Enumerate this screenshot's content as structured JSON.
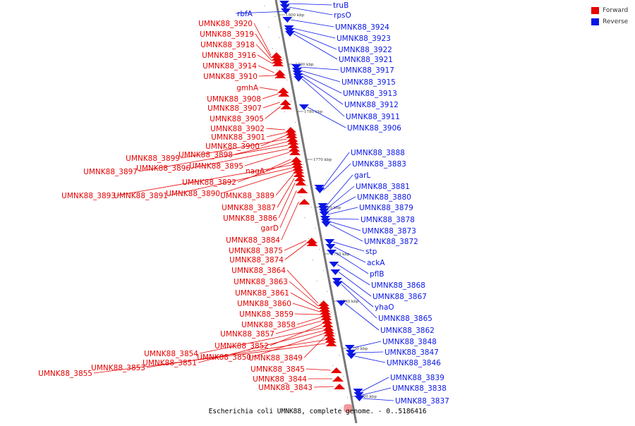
{
  "caption": "Escherichia coli UMNK88, complete genome. - 0..5186416",
  "legend": [
    {
      "label": "Forward",
      "color": "#e60000"
    },
    {
      "label": "Reverse",
      "color": "#0a16e6"
    }
  ],
  "colors": {
    "forward": "#e60000",
    "reverse": "#0a16e6",
    "backbone": "#777777"
  },
  "kbp_marks": [
    "1800 kbp",
    "1790 kbp",
    "1780 kbp",
    "1770 kbp",
    "1760 kbp",
    "1750 kbp",
    "1740 kbp",
    "1730 kbp",
    "1720 kbp"
  ],
  "forward_genes": [
    "UMNK88_3920",
    "UMNK88_3919",
    "UMNK88_3918",
    "UMNK88_3916",
    "UMNK88_3914",
    "UMNK88_3910",
    "gmhA",
    "UMNK88_3908",
    "UMNK88_3907",
    "UMNK88_3905",
    "UMNK88_3902",
    "UMNK88_3901",
    "UMNK88_3900",
    "UMNK88_3899",
    "UMNK88_3898",
    "UMNK88_3897",
    "UMNK88_3896",
    "UMNK88_3895",
    "nagA",
    "UMNK88_3892",
    "UMNK88_3893",
    "UMNK88_3891",
    "UMNK88_3890",
    "UMNK88_3889",
    "UMNK88_3887",
    "UMNK88_3886",
    "garD",
    "UMNK88_3884",
    "UMNK88_3875",
    "UMNK88_3874",
    "UMNK88_3864",
    "UMNK88_3863",
    "UMNK88_3861",
    "UMNK88_3860",
    "UMNK88_3859",
    "UMNK88_3858",
    "UMNK88_3857",
    "UMNK88_3852",
    "UMNK88_3854",
    "UMNK88_3851",
    "UMNK88_3850",
    "UMNK88_3849",
    "UMNK88_3853",
    "UMNK88_3855",
    "UMNK88_3845",
    "UMNK88_3844",
    "UMNK88_3843"
  ],
  "reverse_genes": [
    "rbfA",
    "truB",
    "rpsO",
    "UMNK88_3924",
    "UMNK88_3923",
    "UMNK88_3922",
    "UMNK88_3921",
    "UMNK88_3917",
    "UMNK88_3915",
    "UMNK88_3913",
    "UMNK88_3912",
    "UMNK88_3911",
    "UMNK88_3906",
    "UMNK88_3888",
    "UMNK88_3883",
    "garL",
    "UMNK88_3881",
    "UMNK88_3880",
    "UMNK88_3879",
    "UMNK88_3878",
    "UMNK88_3873",
    "UMNK88_3872",
    "stp",
    "ackA",
    "pflB",
    "UMNK88_3868",
    "UMNK88_3867",
    "yhaO",
    "UMNK88_3865",
    "UMNK88_3862",
    "UMNK88_3848",
    "UMNK88_3847",
    "UMNK88_3846",
    "UMNK88_3839",
    "UMNK88_3838",
    "UMNK88_3837"
  ]
}
